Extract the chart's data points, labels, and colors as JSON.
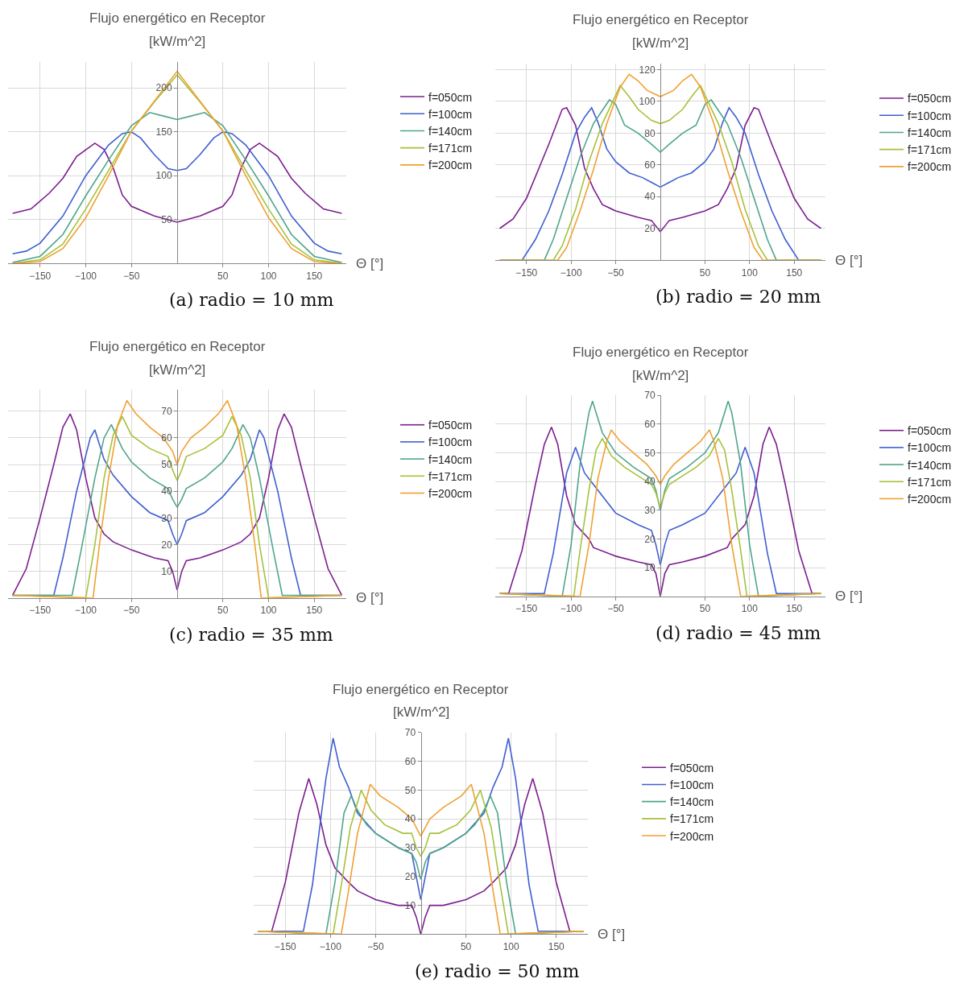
{
  "chart_data": [
    {
      "type": "line",
      "title": "Flujo energético en Receptor",
      "subtitle": "[kW/m^2]",
      "xlabel": "Θ [°]",
      "annotations": [
        "(a) radio = 10 mm"
      ],
      "xlim": [
        -185,
        185
      ],
      "ylim": [
        0,
        230
      ],
      "xticks": [
        {
          "value": -150,
          "label": "−150"
        },
        {
          "value": -100,
          "label": "−100"
        },
        {
          "value": -50,
          "label": "−50"
        },
        50,
        100,
        150
      ],
      "yticks": [
        50,
        100,
        150,
        200
      ],
      "grid": true,
      "legend": "right",
      "series": [
        {
          "name": "f=050cm",
          "color": "#7b1e8e",
          "x": [
            -180,
            -160,
            -140,
            -125,
            -110,
            -90,
            -80,
            -70,
            -60,
            -50,
            -25,
            0,
            25,
            50,
            60,
            70,
            80,
            90,
            110,
            125,
            140,
            160,
            180
          ],
          "values": [
            57,
            62,
            80,
            97,
            122,
            137,
            130,
            109,
            78,
            65,
            54,
            47,
            54,
            65,
            78,
            109,
            130,
            137,
            122,
            97,
            80,
            62,
            57
          ]
        },
        {
          "name": "f=100cm",
          "color": "#3f5fd0",
          "x": [
            -180,
            -165,
            -150,
            -125,
            -100,
            -75,
            -60,
            -50,
            -40,
            -25,
            -10,
            0,
            10,
            25,
            40,
            50,
            60,
            75,
            100,
            125,
            150,
            165,
            180
          ],
          "values": [
            11,
            14,
            23,
            54,
            100,
            135,
            148,
            150,
            143,
            124,
            108,
            106,
            108,
            124,
            143,
            150,
            148,
            135,
            100,
            54,
            23,
            14,
            11
          ]
        },
        {
          "name": "f=140cm",
          "color": "#4fa58b",
          "x": [
            -180,
            -150,
            -125,
            -100,
            -75,
            -50,
            -30,
            -15,
            0,
            15,
            30,
            50,
            75,
            100,
            125,
            150,
            180
          ],
          "values": [
            1,
            8,
            33,
            77,
            118,
            157,
            172,
            168,
            164,
            168,
            172,
            157,
            118,
            77,
            33,
            8,
            1
          ]
        },
        {
          "name": "f=171cm",
          "color": "#a5c23a",
          "x": [
            -180,
            -150,
            -125,
            -100,
            -75,
            -50,
            -25,
            0,
            25,
            50,
            75,
            100,
            125,
            150,
            180
          ],
          "values": [
            0,
            4,
            22,
            62,
            106,
            151,
            184,
            215,
            184,
            151,
            106,
            62,
            22,
            4,
            0
          ]
        },
        {
          "name": "f=200cm",
          "color": "#f0a030",
          "x": [
            -180,
            -150,
            -125,
            -100,
            -75,
            -50,
            -25,
            0,
            25,
            50,
            75,
            100,
            125,
            150,
            180
          ],
          "values": [
            0,
            2,
            17,
            52,
            100,
            151,
            185,
            219,
            185,
            151,
            100,
            52,
            17,
            2,
            0
          ]
        }
      ]
    },
    {
      "type": "line",
      "title": "Flujo energético en Receptor",
      "subtitle": "[kW/m^2]",
      "xlabel": "Θ [°]",
      "annotations": [
        "(b) radio = 20 mm"
      ],
      "xlim": [
        -185,
        185
      ],
      "ylim": [
        0,
        124
      ],
      "xticks": [
        {
          "value": -150,
          "label": "−150"
        },
        {
          "value": -100,
          "label": "−100"
        },
        {
          "value": -50,
          "label": "−50"
        },
        50,
        100,
        150
      ],
      "yticks": [
        20,
        40,
        60,
        80,
        100,
        120
      ],
      "grid": true,
      "legend": "right",
      "series": [
        {
          "name": "f=050cm",
          "color": "#7b1e8e",
          "x": [
            -180,
            -165,
            -150,
            -125,
            -110,
            -105,
            -95,
            -85,
            -75,
            -65,
            -50,
            -25,
            -10,
            0,
            10,
            25,
            50,
            65,
            75,
            85,
            95,
            105,
            110,
            125,
            150,
            165,
            180
          ],
          "values": [
            20,
            26,
            39,
            73,
            95,
            96,
            85,
            58,
            45,
            35,
            31,
            27,
            25,
            18,
            25,
            27,
            31,
            35,
            45,
            58,
            85,
            96,
            95,
            73,
            39,
            26,
            20
          ]
        },
        {
          "name": "f=100cm",
          "color": "#3f5fd0",
          "x": [
            -180,
            -155,
            -140,
            -125,
            -110,
            -95,
            -85,
            -77,
            -70,
            -60,
            -50,
            -35,
            -20,
            -10,
            0,
            10,
            20,
            35,
            50,
            60,
            70,
            77,
            85,
            95,
            110,
            125,
            140,
            155,
            180
          ],
          "values": [
            0,
            0,
            13,
            31,
            54,
            80,
            90,
            96,
            87,
            70,
            62,
            55,
            52,
            49,
            46,
            49,
            52,
            55,
            62,
            70,
            87,
            96,
            90,
            80,
            54,
            31,
            13,
            0,
            0
          ]
        },
        {
          "name": "f=140cm",
          "color": "#4fa58b",
          "x": [
            -180,
            -130,
            -120,
            -105,
            -90,
            -75,
            -57,
            -50,
            -40,
            -25,
            -10,
            0,
            10,
            25,
            40,
            50,
            57,
            75,
            90,
            105,
            120,
            130,
            180
          ],
          "values": [
            0,
            0,
            13,
            39,
            65,
            86,
            101,
            98,
            85,
            80,
            73,
            68,
            73,
            80,
            85,
            98,
            101,
            86,
            65,
            39,
            13,
            0,
            0
          ]
        },
        {
          "name": "f=171cm",
          "color": "#a5c23a",
          "x": [
            -180,
            -120,
            -110,
            -95,
            -80,
            -65,
            -45,
            -35,
            -25,
            -10,
            0,
            10,
            25,
            35,
            45,
            65,
            80,
            95,
            110,
            120,
            180
          ],
          "values": [
            0,
            0,
            9,
            32,
            62,
            86,
            110,
            103,
            95,
            88,
            86,
            88,
            95,
            103,
            110,
            86,
            62,
            32,
            9,
            0,
            0
          ]
        },
        {
          "name": "f=200cm",
          "color": "#f0a030",
          "x": [
            -180,
            -115,
            -105,
            -90,
            -75,
            -60,
            -45,
            -35,
            -25,
            -15,
            0,
            15,
            25,
            35,
            45,
            60,
            75,
            90,
            105,
            115,
            180
          ],
          "values": [
            0,
            0,
            8,
            31,
            57,
            86,
            109,
            117,
            113,
            107,
            103,
            107,
            113,
            117,
            109,
            86,
            57,
            31,
            8,
            0,
            0
          ]
        }
      ]
    },
    {
      "type": "line",
      "title": "Flujo energético en Receptor",
      "subtitle": "[kW/m^2]",
      "xlabel": "Θ [°]",
      "annotations": [
        "(c) radio = 35 mm"
      ],
      "xlim": [
        -185,
        185
      ],
      "ylim": [
        0,
        78
      ],
      "xticks": [
        {
          "value": -150,
          "label": "−150"
        },
        {
          "value": -100,
          "label": "−100"
        },
        {
          "value": -50,
          "label": "−50"
        },
        50,
        100,
        150
      ],
      "yticks": [
        10,
        20,
        30,
        40,
        50,
        60,
        70
      ],
      "grid": true,
      "legend": "right",
      "series": [
        {
          "name": "f=050cm",
          "color": "#7b1e8e",
          "x": [
            -180,
            -165,
            -150,
            -135,
            -125,
            -117,
            -110,
            -100,
            -90,
            -80,
            -70,
            -50,
            -25,
            -10,
            -5,
            0,
            5,
            10,
            25,
            50,
            70,
            80,
            90,
            100,
            110,
            117,
            125,
            135,
            150,
            165,
            180
          ],
          "values": [
            1,
            11,
            30,
            50,
            64,
            69,
            63,
            45,
            30,
            24,
            21,
            18,
            15,
            14,
            10,
            3,
            10,
            14,
            15,
            18,
            21,
            24,
            30,
            45,
            63,
            69,
            64,
            50,
            30,
            11,
            1
          ]
        },
        {
          "name": "f=100cm",
          "color": "#3f5fd0",
          "x": [
            -180,
            -135,
            -125,
            -110,
            -95,
            -90,
            -80,
            -70,
            -50,
            -30,
            -10,
            -5,
            0,
            5,
            10,
            30,
            50,
            70,
            80,
            90,
            95,
            110,
            125,
            135,
            180
          ],
          "values": [
            1,
            1,
            15,
            40,
            60,
            63,
            52,
            46,
            38,
            32,
            29,
            24,
            20,
            24,
            29,
            32,
            38,
            46,
            52,
            63,
            60,
            40,
            15,
            1,
            1
          ]
        },
        {
          "name": "f=140cm",
          "color": "#4fa58b",
          "x": [
            -180,
            -115,
            -105,
            -90,
            -80,
            -72,
            -60,
            -50,
            -30,
            -10,
            -5,
            0,
            5,
            10,
            30,
            50,
            60,
            72,
            80,
            90,
            105,
            115,
            180
          ],
          "values": [
            1,
            1,
            18,
            45,
            60,
            65,
            56,
            51,
            45,
            41,
            37,
            34,
            37,
            41,
            45,
            51,
            56,
            65,
            60,
            45,
            18,
            1,
            1
          ]
        },
        {
          "name": "f=171cm",
          "color": "#a5c23a",
          "x": [
            -180,
            -100,
            -90,
            -80,
            -70,
            -60,
            -50,
            -30,
            -10,
            -5,
            0,
            5,
            10,
            30,
            50,
            60,
            70,
            80,
            90,
            100,
            180
          ],
          "values": [
            1,
            0,
            20,
            45,
            61,
            68,
            61,
            56,
            53,
            48,
            44,
            48,
            53,
            56,
            61,
            68,
            61,
            45,
            20,
            0,
            1
          ]
        },
        {
          "name": "f=200cm",
          "color": "#f0a030",
          "x": [
            -180,
            -92,
            -85,
            -75,
            -65,
            -55,
            -45,
            -30,
            -15,
            -5,
            0,
            5,
            15,
            30,
            45,
            55,
            65,
            75,
            85,
            92,
            180
          ],
          "values": [
            1,
            0,
            20,
            45,
            65,
            74,
            69,
            64,
            60,
            55,
            50,
            55,
            60,
            64,
            69,
            74,
            65,
            45,
            20,
            0,
            1
          ]
        }
      ]
    },
    {
      "type": "line",
      "title": "Flujo energético en Receptor",
      "subtitle": "[kW/m^2]",
      "xlabel": "Θ [°]",
      "annotations": [
        "(d) radio = 45 mm"
      ],
      "xlim": [
        -185,
        185
      ],
      "ylim": [
        0,
        70
      ],
      "xticks": [
        {
          "value": -150,
          "label": "−150"
        },
        {
          "value": -100,
          "label": "−100"
        },
        {
          "value": -50,
          "label": "−50"
        },
        50,
        100,
        150
      ],
      "yticks": [
        10,
        20,
        30,
        40,
        50,
        60,
        70
      ],
      "grid": true,
      "legend": "right",
      "series": [
        {
          "name": "f=050cm",
          "color": "#7b1e8e",
          "x": [
            -180,
            -170,
            -155,
            -140,
            -130,
            -122,
            -115,
            -105,
            -95,
            -80,
            -75,
            -50,
            -25,
            -10,
            -5,
            0,
            5,
            10,
            25,
            50,
            75,
            80,
            95,
            105,
            115,
            122,
            130,
            140,
            155,
            170,
            180
          ],
          "values": [
            1,
            1,
            16,
            39,
            53,
            59,
            53,
            35,
            25,
            20,
            17,
            14,
            12,
            11,
            8,
            0,
            8,
            11,
            12,
            14,
            17,
            20,
            25,
            35,
            53,
            59,
            53,
            39,
            16,
            1,
            1
          ]
        },
        {
          "name": "f=100cm",
          "color": "#3f5fd0",
          "x": [
            -180,
            -130,
            -120,
            -105,
            -95,
            -85,
            -75,
            -50,
            -25,
            -10,
            -5,
            0,
            5,
            10,
            25,
            50,
            75,
            85,
            95,
            105,
            120,
            130,
            180
          ],
          "values": [
            1,
            1,
            15,
            43,
            52,
            43,
            39,
            29,
            25,
            23,
            18,
            11,
            18,
            23,
            25,
            29,
            39,
            43,
            52,
            43,
            15,
            1,
            1
          ]
        },
        {
          "name": "f=140cm",
          "color": "#4fa58b",
          "x": [
            -180,
            -110,
            -100,
            -90,
            -80,
            -76,
            -65,
            -50,
            -30,
            -10,
            -5,
            0,
            5,
            10,
            30,
            50,
            65,
            76,
            80,
            90,
            100,
            110,
            180
          ],
          "values": [
            1,
            0,
            18,
            46,
            64,
            68,
            57,
            50,
            45,
            41,
            37,
            30,
            37,
            41,
            45,
            50,
            57,
            68,
            64,
            46,
            18,
            0,
            1
          ]
        },
        {
          "name": "f=171cm",
          "color": "#a5c23a",
          "x": [
            -180,
            -97,
            -90,
            -80,
            -72,
            -65,
            -55,
            -40,
            -20,
            -10,
            -5,
            0,
            5,
            10,
            20,
            40,
            55,
            65,
            72,
            80,
            90,
            97,
            180
          ],
          "values": [
            1,
            0,
            16,
            37,
            51,
            55,
            49,
            45,
            41,
            39,
            36,
            31,
            36,
            39,
            41,
            45,
            49,
            55,
            51,
            37,
            16,
            0,
            1
          ]
        },
        {
          "name": "f=200cm",
          "color": "#f0a030",
          "x": [
            -180,
            -90,
            -80,
            -70,
            -60,
            -55,
            -45,
            -30,
            -15,
            -5,
            0,
            5,
            15,
            30,
            45,
            55,
            60,
            70,
            80,
            90,
            180
          ],
          "values": [
            1,
            0,
            18,
            41,
            54,
            58,
            54,
            50,
            46,
            42,
            39,
            42,
            46,
            50,
            54,
            58,
            54,
            41,
            18,
            0,
            1
          ]
        }
      ]
    },
    {
      "type": "line",
      "title": "Flujo energético en Receptor",
      "subtitle": "[kW/m^2]",
      "xlabel": "Θ [°]",
      "annotations": [
        "(e) radio = 50 mm"
      ],
      "xlim": [
        -185,
        185
      ],
      "ylim": [
        0,
        70
      ],
      "xticks": [
        {
          "value": -150,
          "label": "−150"
        },
        {
          "value": -100,
          "label": "−100"
        },
        {
          "value": -50,
          "label": "−50"
        },
        50,
        100,
        150
      ],
      "yticks": [
        10,
        20,
        30,
        40,
        50,
        60,
        70
      ],
      "grid": true,
      "legend": "right",
      "series": [
        {
          "name": "f=050cm",
          "color": "#7b1e8e",
          "x": [
            -180,
            -165,
            -150,
            -135,
            -124,
            -115,
            -105,
            -95,
            -80,
            -70,
            -50,
            -25,
            -10,
            -5,
            0,
            5,
            10,
            25,
            50,
            70,
            80,
            95,
            105,
            115,
            124,
            135,
            150,
            165,
            180
          ],
          "values": [
            1,
            1,
            18,
            42,
            54,
            45,
            31,
            23,
            18,
            15,
            12,
            10,
            10,
            6,
            0,
            6,
            10,
            10,
            12,
            15,
            18,
            23,
            31,
            45,
            54,
            42,
            18,
            1,
            1
          ]
        },
        {
          "name": "f=100cm",
          "color": "#3f5fd0",
          "x": [
            -180,
            -130,
            -120,
            -105,
            -97,
            -90,
            -80,
            -70,
            -50,
            -25,
            -10,
            -5,
            0,
            5,
            10,
            25,
            50,
            70,
            80,
            90,
            97,
            105,
            120,
            130,
            180
          ],
          "values": [
            1,
            1,
            17,
            54,
            68,
            58,
            51,
            42,
            35,
            30,
            28,
            20,
            12,
            20,
            28,
            30,
            35,
            42,
            51,
            58,
            68,
            54,
            17,
            1,
            1
          ]
        },
        {
          "name": "f=140cm",
          "color": "#4fa58b",
          "x": [
            -180,
            -105,
            -95,
            -85,
            -77,
            -70,
            -60,
            -50,
            -25,
            -10,
            -5,
            0,
            5,
            10,
            25,
            50,
            60,
            70,
            77,
            85,
            95,
            105,
            180
          ],
          "values": [
            1,
            0,
            18,
            42,
            48,
            43,
            38,
            35,
            30,
            28,
            25,
            19,
            25,
            28,
            30,
            35,
            38,
            43,
            48,
            42,
            18,
            0,
            1
          ]
        },
        {
          "name": "f=171cm",
          "color": "#a5c23a",
          "x": [
            -180,
            -97,
            -88,
            -78,
            -66,
            -55,
            -40,
            -20,
            -10,
            -5,
            0,
            5,
            10,
            20,
            40,
            55,
            66,
            78,
            88,
            97,
            180
          ],
          "values": [
            1,
            0,
            17,
            37,
            50,
            43,
            38,
            35,
            35,
            30,
            27,
            30,
            35,
            35,
            38,
            43,
            50,
            37,
            17,
            0,
            1
          ]
        },
        {
          "name": "f=200cm",
          "color": "#f0a030",
          "x": [
            -180,
            -88,
            -80,
            -70,
            -60,
            -56,
            -45,
            -25,
            -10,
            -5,
            0,
            5,
            10,
            25,
            45,
            56,
            60,
            70,
            80,
            88,
            180
          ],
          "values": [
            1,
            0,
            15,
            35,
            47,
            52,
            48,
            44,
            40,
            37,
            34,
            37,
            40,
            44,
            48,
            52,
            47,
            35,
            15,
            0,
            1
          ]
        }
      ]
    }
  ]
}
